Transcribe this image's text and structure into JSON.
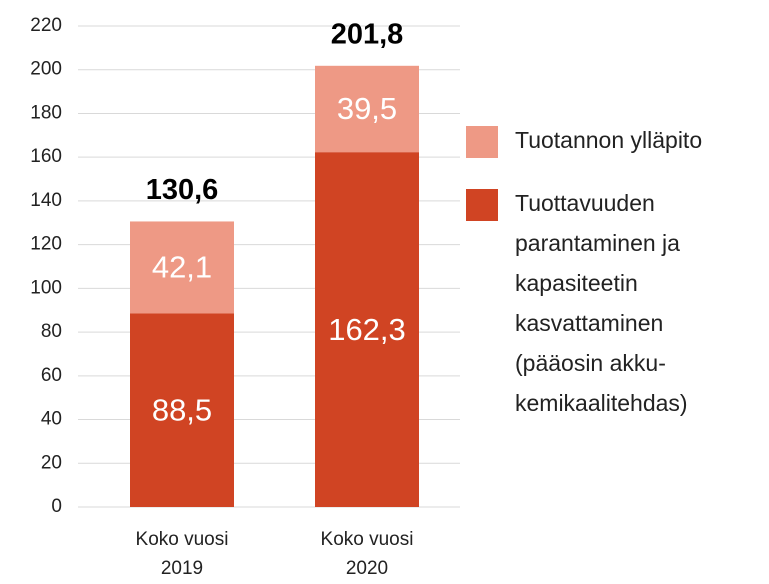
{
  "chart_data": {
    "type": "stacked_bar",
    "categories": [
      "Koko vuosi\n2019",
      "Koko vuosi\n2020"
    ],
    "series": [
      {
        "name": "Tuottavuuden\nparantaminen ja\nkapasiteetin\nkasvattaminen\n(pääosin akku-\nkemikaalitehdas)",
        "color": "#d04423",
        "values": [
          88.5,
          162.3
        ],
        "value_labels": [
          "88,5",
          "162,3"
        ]
      },
      {
        "name": "Tuotannon ylläpito",
        "color": "#ee9985",
        "values": [
          42.1,
          39.5
        ],
        "value_labels": [
          "42,1",
          "39,5"
        ]
      }
    ],
    "totals": [
      130.6,
      201.8
    ],
    "total_labels": [
      "130,6",
      "201,8"
    ],
    "ylim": [
      0,
      220
    ],
    "yticks": [
      0,
      20,
      40,
      60,
      80,
      100,
      120,
      140,
      160,
      180,
      200,
      220
    ],
    "grid": true
  }
}
